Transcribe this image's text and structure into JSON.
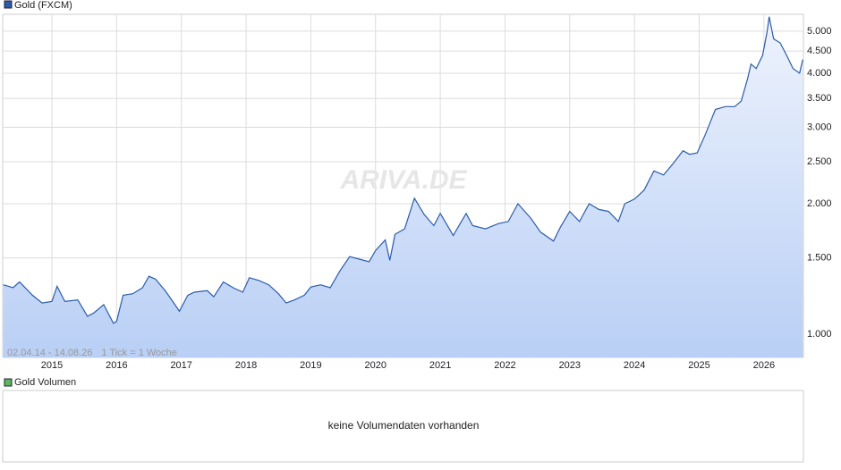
{
  "chart_data": [
    {
      "type": "line",
      "log_y": true,
      "grid": true,
      "watermark": "ARIVA.DE",
      "date_range": "02.04.14 - 14.08.26",
      "tick_info": "1 Tick = 1 Woche",
      "x": [
        2014.25,
        2014.4,
        2014.5,
        2014.7,
        2014.85,
        2015.0,
        2015.08,
        2015.2,
        2015.4,
        2015.55,
        2015.65,
        2015.8,
        2015.95,
        2016.0,
        2016.1,
        2016.25,
        2016.4,
        2016.5,
        2016.6,
        2016.75,
        2016.9,
        2016.97,
        2017.1,
        2017.2,
        2017.4,
        2017.5,
        2017.65,
        2017.8,
        2017.95,
        2018.05,
        2018.2,
        2018.35,
        2018.5,
        2018.62,
        2018.75,
        2018.9,
        2019.0,
        2019.15,
        2019.3,
        2019.45,
        2019.6,
        2019.75,
        2019.9,
        2020.0,
        2020.15,
        2020.22,
        2020.3,
        2020.45,
        2020.6,
        2020.75,
        2020.9,
        2021.0,
        2021.2,
        2021.4,
        2021.5,
        2021.7,
        2021.9,
        2022.05,
        2022.2,
        2022.4,
        2022.55,
        2022.75,
        2022.85,
        2023.0,
        2023.15,
        2023.3,
        2023.45,
        2023.6,
        2023.75,
        2023.85,
        2024.0,
        2024.15,
        2024.3,
        2024.45,
        2024.6,
        2024.75,
        2024.85,
        2024.97,
        2025.1,
        2025.25,
        2025.4,
        2025.55,
        2025.65,
        2025.75,
        2025.8,
        2025.88,
        2025.98,
        2026.05,
        2026.08,
        2026.15,
        2026.25,
        2026.35,
        2026.45,
        2026.55,
        2026.6
      ],
      "series": [
        {
          "name": "Gold (FXCM)",
          "color": "#2a5caa",
          "values": [
            1300,
            1280,
            1320,
            1230,
            1180,
            1190,
            1290,
            1190,
            1200,
            1100,
            1120,
            1170,
            1060,
            1070,
            1230,
            1240,
            1280,
            1360,
            1340,
            1260,
            1170,
            1130,
            1230,
            1250,
            1260,
            1220,
            1320,
            1280,
            1250,
            1350,
            1330,
            1300,
            1240,
            1180,
            1200,
            1230,
            1285,
            1300,
            1280,
            1400,
            1510,
            1490,
            1470,
            1560,
            1650,
            1480,
            1700,
            1750,
            2060,
            1890,
            1780,
            1900,
            1690,
            1900,
            1780,
            1750,
            1800,
            1820,
            2000,
            1850,
            1720,
            1640,
            1760,
            1920,
            1820,
            2000,
            1940,
            1920,
            1820,
            2000,
            2050,
            2150,
            2380,
            2330,
            2480,
            2650,
            2600,
            2620,
            2900,
            3300,
            3350,
            3350,
            3450,
            3900,
            4200,
            4100,
            4400,
            5000,
            5400,
            4800,
            4700,
            4400,
            4100,
            4000,
            4300
          ]
        }
      ],
      "xlim": [
        2014.24,
        2026.61
      ],
      "xticks": [
        2015,
        2016,
        2017,
        2018,
        2019,
        2020,
        2021,
        2022,
        2023,
        2024,
        2025,
        2026
      ],
      "ylim": [
        884,
        5470
      ],
      "yticks": [
        {
          "value": 1000,
          "label": "1.000"
        },
        {
          "value": 1500,
          "label": "1.500"
        },
        {
          "value": 2000,
          "label": "2.000"
        },
        {
          "value": 2500,
          "label": "2.500"
        },
        {
          "value": 3000,
          "label": "3.000"
        },
        {
          "value": 3500,
          "label": "3.500"
        },
        {
          "value": 4000,
          "label": "4.000"
        },
        {
          "value": 4500,
          "label": "4.500"
        },
        {
          "value": 5000,
          "label": "5.000"
        }
      ]
    },
    {
      "type": "bar",
      "title": "Gold Volumen",
      "color": "#5cb85c",
      "annotation": "keine Volumendaten vorhanden"
    }
  ]
}
